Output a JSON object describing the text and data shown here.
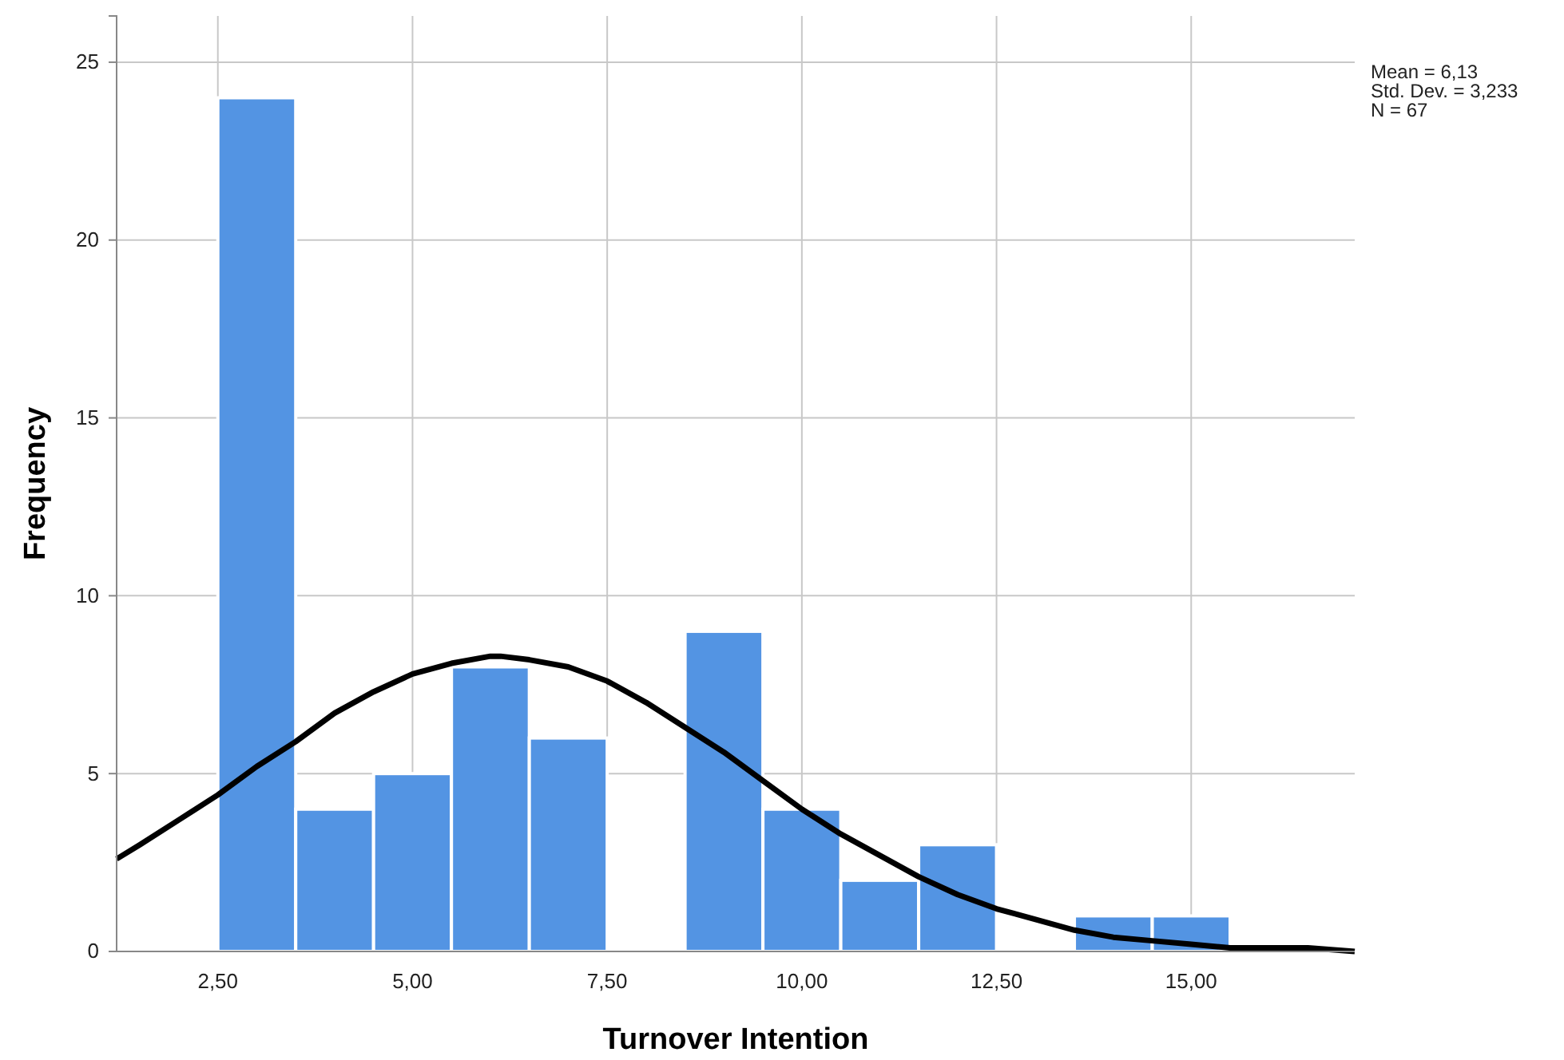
{
  "chart_data": {
    "type": "histogram",
    "xlabel": "Turnover Intention",
    "ylabel": "Frequency",
    "bins": [
      2.5,
      3.5,
      4.5,
      5.5,
      6.5,
      7.5,
      8.5,
      9.5,
      10.5,
      11.5,
      12.5,
      13.5,
      14.5,
      15.5
    ],
    "series": [
      {
        "color": "#5394e3",
        "values": [
          24,
          4,
          5,
          8,
          6,
          0,
          9,
          4,
          2,
          3,
          0,
          1,
          1
        ]
      },
      {
        "type": "line",
        "color": "#000000",
        "x": [
          1.2,
          1.5,
          2,
          2.5,
          3,
          3.5,
          4,
          4.5,
          5,
          5.5,
          6,
          6.13,
          6.5,
          7,
          7.5,
          8,
          8.5,
          9,
          9.5,
          10,
          10.5,
          11,
          11.5,
          12,
          12.5,
          13,
          13.5,
          14,
          14.5,
          15,
          15.5,
          16,
          16.5,
          17.1
        ],
        "values": [
          2.6,
          3.0,
          3.7,
          4.4,
          5.2,
          5.9,
          6.7,
          7.3,
          7.8,
          8.1,
          8.3,
          8.3,
          8.2,
          8.0,
          7.6,
          7.0,
          6.3,
          5.6,
          4.8,
          4.0,
          3.3,
          2.7,
          2.1,
          1.6,
          1.2,
          0.9,
          0.6,
          0.4,
          0.3,
          0.2,
          0.1,
          0.1,
          0.1,
          0.0
        ]
      }
    ],
    "xlim": [
      1.2,
      17.1
    ],
    "ylim": [
      0,
      26.3
    ],
    "xticks": [
      {
        "value": 2.5,
        "label": "2,50"
      },
      {
        "value": 5,
        "label": "5,00"
      },
      {
        "value": 7.5,
        "label": "7,50"
      },
      {
        "value": 10,
        "label": "10,00"
      },
      {
        "value": 12.5,
        "label": "12,50"
      },
      {
        "value": 15,
        "label": "15,00"
      }
    ],
    "yticks": [
      0,
      5,
      10,
      15,
      20,
      25
    ],
    "grid": true,
    "marker": "none",
    "line_style": "solid",
    "annotations": [
      "Mean = 6,13",
      "Std. Dev. = 3,233",
      "N = 67"
    ]
  }
}
